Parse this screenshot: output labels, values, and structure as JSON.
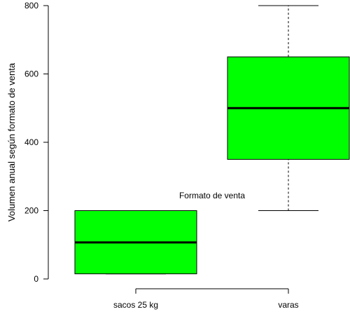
{
  "chart_data": {
    "type": "boxplot",
    "title": "",
    "xlabel": "",
    "ylabel": "Volumen anual según formato de venta",
    "annotation": "Formato de venta",
    "ylim": [
      0,
      800
    ],
    "yticks": [
      0,
      200,
      400,
      600,
      800
    ],
    "categories": [
      "sacos 25 kg",
      "varas"
    ],
    "series": [
      {
        "category": "sacos 25 kg",
        "whisker_low": 15,
        "q1": 15,
        "median": 107,
        "q3": 200,
        "whisker_high": 200
      },
      {
        "category": "varas",
        "whisker_low": 200,
        "q1": 350,
        "median": 500,
        "q3": 650,
        "whisker_high": 800
      }
    ],
    "box_color": "#00ff00",
    "line_color": "#000000",
    "grid": false
  }
}
